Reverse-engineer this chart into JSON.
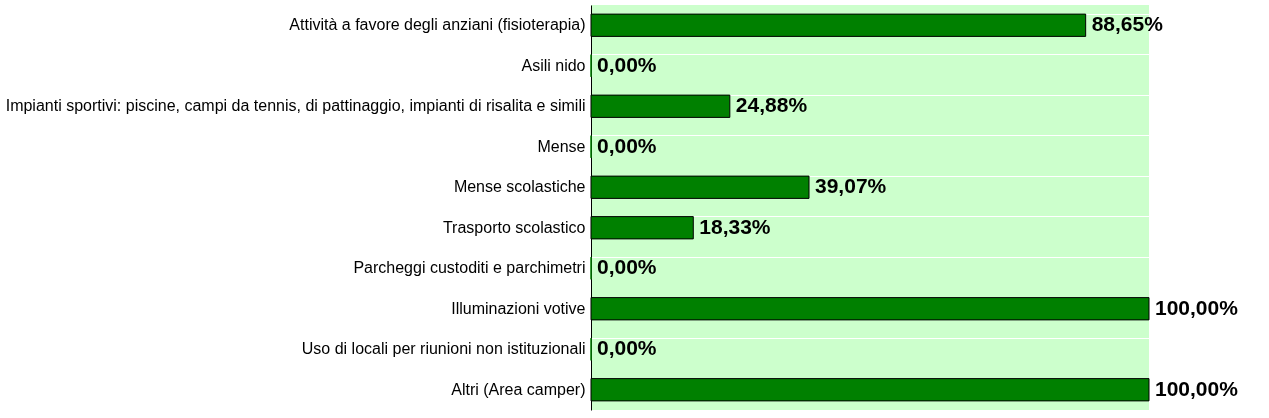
{
  "chart_data": {
    "type": "bar",
    "orientation": "horizontal",
    "categories": [
      "Attività a favore degli anziani (fisioterapia)",
      "Asili nido",
      "Impianti sportivi: piscine, campi da tennis, di pattinaggio, impianti di risalita e simili",
      "Mense",
      "Mense scolastiche",
      "Trasporto scolastico",
      "Parcheggi custoditi e parchimetri",
      "Illuminazioni votive",
      "Uso di locali per riunioni non istituzionali",
      "Altri (Area camper)"
    ],
    "values": [
      88.65,
      0,
      24.88,
      0,
      39.07,
      18.33,
      0,
      100,
      0,
      100
    ],
    "value_labels": [
      "88,65%",
      "0,00%",
      "24,88%",
      "0,00%",
      "39,07%",
      "18,33%",
      "0,00%",
      "100,00%",
      "0,00%",
      "100,00%"
    ],
    "color": "#008000",
    "grid": "y"
  }
}
